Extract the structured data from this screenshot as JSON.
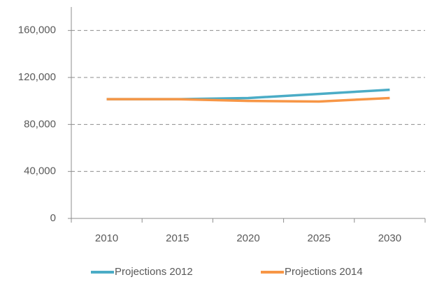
{
  "chart_data": {
    "type": "line",
    "categories": [
      "2010",
      "2015",
      "2020",
      "2025",
      "2030"
    ],
    "series": [
      {
        "name": "Projections 2012",
        "color": "#4bacc6",
        "values": [
          101500,
          101500,
          102500,
          106000,
          109500
        ]
      },
      {
        "name": "Projections 2014",
        "color": "#f79646",
        "values": [
          101500,
          101500,
          100000,
          99500,
          102500
        ]
      }
    ],
    "ylim": [
      0,
      180000
    ],
    "yticks": [
      0,
      {
        "value": 40000,
        "label": "40,000"
      },
      {
        "value": 80000,
        "label": "80,000"
      },
      {
        "value": 120000,
        "label": "120,000"
      },
      {
        "value": 160000,
        "label": "160,000"
      }
    ],
    "grid": true,
    "legend": "bottom"
  }
}
